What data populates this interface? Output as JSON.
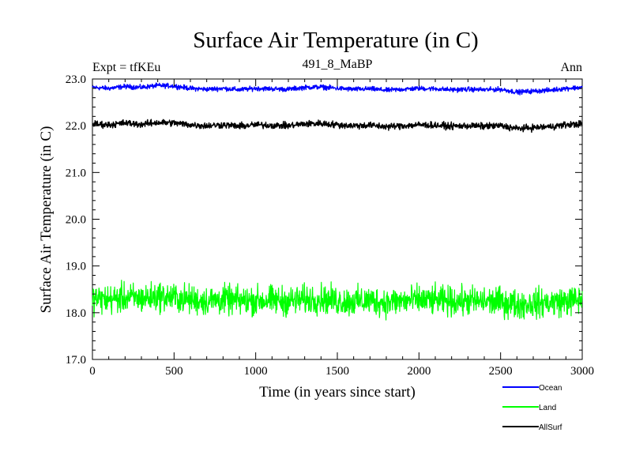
{
  "chart_data": {
    "type": "line",
    "title": "Surface Air Temperature (in C)",
    "subtitle": "491_8_MaBP",
    "annotation_left": "Expt = tfKEu",
    "annotation_right": "Ann",
    "xlabel": "Time (in years since start)",
    "ylabel": "Surface Air Temperature (in C)",
    "xlim": [
      0,
      3000
    ],
    "ylim": [
      17.0,
      23.0
    ],
    "x_ticks": [
      0,
      500,
      1000,
      1500,
      2000,
      2500,
      3000
    ],
    "x_tick_labels": [
      "0",
      "500",
      "1000",
      "1500",
      "2000",
      "2500",
      "3000"
    ],
    "y_ticks": [
      17.0,
      18.0,
      19.0,
      20.0,
      21.0,
      22.0,
      23.0
    ],
    "y_tick_labels": [
      "17.0",
      "18.0",
      "19.0",
      "20.0",
      "21.0",
      "22.0",
      "23.0"
    ],
    "grid": false,
    "legend_position": "below-right",
    "series": [
      {
        "name": "Ocean",
        "color": "#0000ff",
        "x": [
          0,
          100,
          200,
          300,
          400,
          500,
          600,
          700,
          800,
          900,
          1000,
          1100,
          1200,
          1300,
          1400,
          1500,
          1600,
          1700,
          1800,
          1900,
          2000,
          2100,
          2200,
          2300,
          2400,
          2500,
          2600,
          2700,
          2800,
          2900,
          3000
        ],
        "values": [
          22.82,
          22.8,
          22.84,
          22.82,
          22.86,
          22.85,
          22.8,
          22.78,
          22.8,
          22.77,
          22.8,
          22.79,
          22.78,
          22.82,
          22.83,
          22.8,
          22.78,
          22.79,
          22.76,
          22.78,
          22.8,
          22.79,
          22.77,
          22.78,
          22.77,
          22.78,
          22.72,
          22.74,
          22.76,
          22.8,
          22.82
        ]
      },
      {
        "name": "Land",
        "color": "#00ff00",
        "x": [
          0,
          100,
          200,
          300,
          400,
          500,
          600,
          700,
          800,
          900,
          1000,
          1100,
          1200,
          1300,
          1400,
          1500,
          1600,
          1700,
          1800,
          1900,
          2000,
          2100,
          2200,
          2300,
          2400,
          2500,
          2600,
          2700,
          2800,
          2900,
          3000
        ],
        "values": [
          18.3,
          18.28,
          18.32,
          18.3,
          18.35,
          18.32,
          18.28,
          18.25,
          18.28,
          18.25,
          18.27,
          18.26,
          18.25,
          18.28,
          18.3,
          18.25,
          18.24,
          18.26,
          18.22,
          18.25,
          18.27,
          18.26,
          18.24,
          18.25,
          18.24,
          18.23,
          18.18,
          18.2,
          18.22,
          18.25,
          18.28
        ]
      },
      {
        "name": "AllSurf",
        "color": "#000000",
        "x": [
          0,
          100,
          200,
          300,
          400,
          500,
          600,
          700,
          800,
          900,
          1000,
          1100,
          1200,
          1300,
          1400,
          1500,
          1600,
          1700,
          1800,
          1900,
          2000,
          2100,
          2200,
          2300,
          2400,
          2500,
          2600,
          2700,
          2800,
          2900,
          3000
        ],
        "values": [
          22.04,
          22.02,
          22.06,
          22.03,
          22.07,
          22.06,
          22.02,
          22.0,
          22.02,
          21.99,
          22.02,
          22.01,
          22.0,
          22.04,
          22.05,
          22.02,
          22.0,
          22.01,
          21.98,
          22.0,
          22.02,
          22.01,
          21.99,
          22.0,
          21.99,
          22.0,
          21.94,
          21.96,
          21.98,
          22.02,
          22.04
        ]
      }
    ]
  }
}
